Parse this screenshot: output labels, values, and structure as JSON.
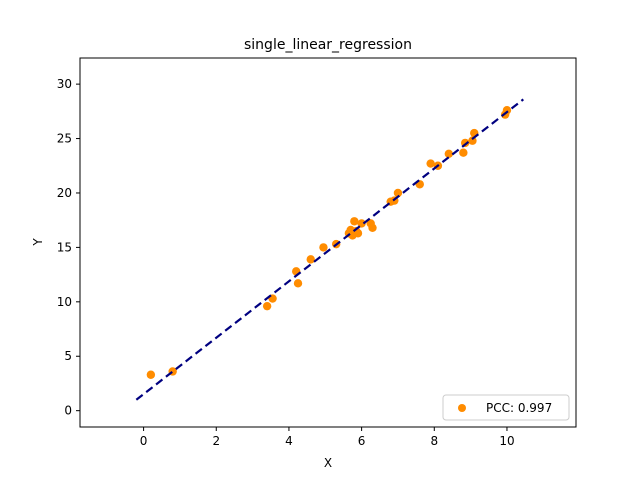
{
  "chart_data": {
    "type": "scatter",
    "title": "single_linear_regression",
    "xlabel": "X",
    "ylabel": "Y",
    "xlim": [
      -1.75,
      11.9
    ],
    "ylim": [
      -1.5,
      32.4
    ],
    "xticks": [
      0,
      2,
      4,
      6,
      8,
      10
    ],
    "yticks": [
      0,
      5,
      10,
      15,
      20,
      25,
      30
    ],
    "grid": false,
    "legend": {
      "position": "lower right",
      "label": "PCC: 0.997"
    },
    "colors": {
      "points": "#ff8c00",
      "fit_line": "#000080"
    },
    "series": [
      {
        "name": "PCC: 0.997",
        "type": "scatter",
        "points": [
          [
            0.2,
            3.3
          ],
          [
            0.8,
            3.6
          ],
          [
            3.4,
            9.6
          ],
          [
            3.55,
            10.3
          ],
          [
            4.2,
            12.8
          ],
          [
            4.25,
            11.7
          ],
          [
            4.6,
            13.9
          ],
          [
            4.95,
            15.0
          ],
          [
            5.3,
            15.3
          ],
          [
            5.65,
            16.3
          ],
          [
            5.7,
            16.6
          ],
          [
            5.75,
            16.1
          ],
          [
            5.8,
            17.4
          ],
          [
            5.85,
            16.5
          ],
          [
            5.9,
            16.3
          ],
          [
            6.0,
            17.2
          ],
          [
            6.25,
            17.2
          ],
          [
            6.3,
            16.8
          ],
          [
            6.8,
            19.2
          ],
          [
            6.9,
            19.3
          ],
          [
            7.0,
            20.0
          ],
          [
            7.6,
            20.8
          ],
          [
            7.9,
            22.7
          ],
          [
            8.1,
            22.5
          ],
          [
            8.4,
            23.6
          ],
          [
            8.8,
            23.7
          ],
          [
            8.85,
            24.6
          ],
          [
            9.05,
            24.8
          ],
          [
            9.1,
            25.5
          ],
          [
            9.95,
            27.2
          ],
          [
            10.0,
            27.6
          ]
        ]
      },
      {
        "name": "fit",
        "type": "line",
        "style": "dashed",
        "points": [
          [
            -0.2,
            1.0
          ],
          [
            10.45,
            28.6
          ]
        ]
      }
    ]
  }
}
